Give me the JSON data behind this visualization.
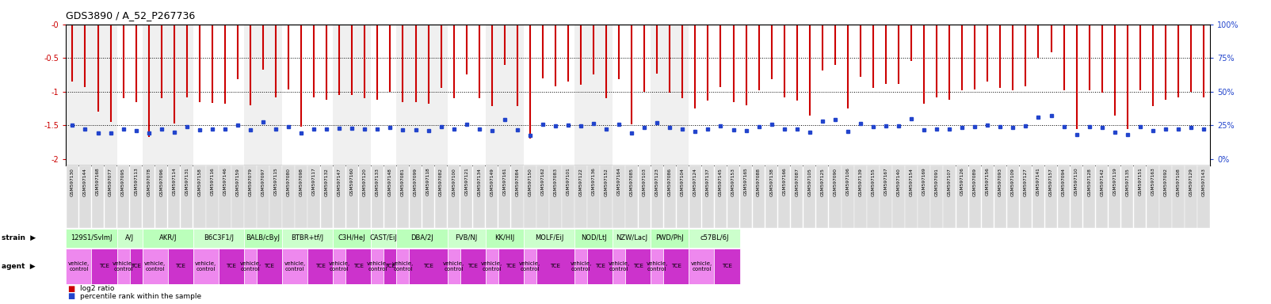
{
  "title": "GDS3890 / A_52_P267736",
  "gsm_ids": [
    "GSM597130",
    "GSM597144",
    "GSM597168",
    "GSM597077",
    "GSM597095",
    "GSM597113",
    "GSM597078",
    "GSM597096",
    "GSM597114",
    "GSM597131",
    "GSM597158",
    "GSM597116",
    "GSM597146",
    "GSM597159",
    "GSM597079",
    "GSM597097",
    "GSM597115",
    "GSM597080",
    "GSM597098",
    "GSM597117",
    "GSM597132",
    "GSM597147",
    "GSM597160",
    "GSM597120",
    "GSM597133",
    "GSM597148",
    "GSM597081",
    "GSM597099",
    "GSM597118",
    "GSM597082",
    "GSM597100",
    "GSM597121",
    "GSM597134",
    "GSM597149",
    "GSM597161",
    "GSM597084",
    "GSM597150",
    "GSM597162",
    "GSM597083",
    "GSM597101",
    "GSM597122",
    "GSM597136",
    "GSM597152",
    "GSM597164",
    "GSM597085",
    "GSM597103",
    "GSM597123",
    "GSM597086",
    "GSM597104",
    "GSM597124",
    "GSM597137",
    "GSM597145",
    "GSM597153",
    "GSM597165",
    "GSM597088",
    "GSM597138",
    "GSM597166",
    "GSM597087",
    "GSM597105",
    "GSM597125",
    "GSM597090",
    "GSM597106",
    "GSM597139",
    "GSM597155",
    "GSM597167",
    "GSM597140",
    "GSM597154",
    "GSM597169",
    "GSM597091",
    "GSM597107",
    "GSM597126",
    "GSM597089",
    "GSM597156",
    "GSM597093",
    "GSM597109",
    "GSM597127",
    "GSM597141",
    "GSM597157",
    "GSM597094",
    "GSM597110",
    "GSM597128",
    "GSM597142",
    "GSM597119",
    "GSM597135",
    "GSM597151",
    "GSM597163",
    "GSM597092",
    "GSM597108",
    "GSM597129",
    "GSM597143"
  ],
  "log2_vals": [
    -0.85,
    -0.93,
    -1.3,
    -1.45,
    -1.1,
    -1.15,
    -1.67,
    -1.1,
    -1.47,
    -1.08,
    -1.15,
    -1.17,
    -1.18,
    -0.82,
    -1.2,
    -0.67,
    -1.08,
    -0.97,
    -1.52,
    -1.08,
    -1.12,
    -1.05,
    -1.05,
    -1.1,
    -1.12,
    -1.0,
    -1.15,
    -1.15,
    -1.18,
    -0.95,
    -1.1,
    -0.75,
    -1.1,
    -1.22,
    -0.6,
    -1.22,
    -1.7,
    -0.8,
    -0.92,
    -0.85,
    -0.9,
    -0.75,
    -1.1,
    -0.82,
    -1.48,
    -1.0,
    -0.73,
    -1.02,
    -1.1,
    -1.25,
    -1.13,
    -0.93,
    -1.15,
    -1.2,
    -0.98,
    -0.82,
    -1.08,
    -1.13,
    -1.35,
    -0.68,
    -0.6,
    -1.25,
    -0.78,
    -0.95,
    -0.88,
    -0.88,
    -0.55,
    -1.18,
    -1.08,
    -1.12,
    -0.98,
    -0.97,
    -0.85,
    -0.95,
    -0.98,
    -0.92,
    -0.5,
    -0.42,
    -0.98,
    -1.55,
    -0.98,
    -1.02,
    -1.35,
    -1.55,
    -0.98,
    -1.22,
    -1.12,
    -1.08,
    -1.0,
    -1.08
  ],
  "pct_vals": [
    -1.5,
    -1.55,
    -1.62,
    -1.62,
    -1.55,
    -1.58,
    -1.62,
    -1.55,
    -1.6,
    -1.52,
    -1.57,
    -1.56,
    -1.56,
    -1.5,
    -1.57,
    -1.45,
    -1.56,
    -1.52,
    -1.62,
    -1.55,
    -1.56,
    -1.54,
    -1.54,
    -1.56,
    -1.56,
    -1.53,
    -1.57,
    -1.57,
    -1.58,
    -1.52,
    -1.55,
    -1.48,
    -1.55,
    -1.58,
    -1.42,
    -1.57,
    -1.65,
    -1.49,
    -1.51,
    -1.5,
    -1.51,
    -1.47,
    -1.55,
    -1.49,
    -1.62,
    -1.53,
    -1.46,
    -1.53,
    -1.55,
    -1.59,
    -1.56,
    -1.51,
    -1.57,
    -1.58,
    -1.52,
    -1.49,
    -1.55,
    -1.56,
    -1.6,
    -1.44,
    -1.42,
    -1.59,
    -1.47,
    -1.52,
    -1.51,
    -1.51,
    -1.4,
    -1.57,
    -1.55,
    -1.56,
    -1.53,
    -1.52,
    -1.5,
    -1.52,
    -1.53,
    -1.51,
    -1.38,
    -1.35,
    -1.52,
    -1.64,
    -1.52,
    -1.53,
    -1.6,
    -1.64,
    -1.52,
    -1.58,
    -1.56,
    -1.55,
    -1.53,
    -1.55
  ],
  "strains": [
    {
      "name": "129S1/SvImJ",
      "start": 0,
      "end": 4
    },
    {
      "name": "A/J",
      "start": 4,
      "end": 6
    },
    {
      "name": "AKR/J",
      "start": 6,
      "end": 10
    },
    {
      "name": "B6C3F1/J",
      "start": 10,
      "end": 14
    },
    {
      "name": "BALB/cByJ",
      "start": 14,
      "end": 17
    },
    {
      "name": "BTBR+tf/J",
      "start": 17,
      "end": 21
    },
    {
      "name": "C3H/HeJ",
      "start": 21,
      "end": 24
    },
    {
      "name": "CAST/EiJ",
      "start": 24,
      "end": 26
    },
    {
      "name": "DBA/2J",
      "start": 26,
      "end": 30
    },
    {
      "name": "FVB/NJ",
      "start": 30,
      "end": 33
    },
    {
      "name": "KK/HIJ",
      "start": 33,
      "end": 36
    },
    {
      "name": "MOLF/EiJ",
      "start": 36,
      "end": 40
    },
    {
      "name": "NOD/LtJ",
      "start": 40,
      "end": 43
    },
    {
      "name": "NZW/LacJ",
      "start": 43,
      "end": 46
    },
    {
      "name": "PWD/PhJ",
      "start": 46,
      "end": 49
    },
    {
      "name": "c57BL/6J",
      "start": 49,
      "end": 53
    }
  ],
  "agents": [
    {
      "name": "vehicle,\ncontrol",
      "start": 0,
      "end": 2
    },
    {
      "name": "TCE",
      "start": 2,
      "end": 4
    },
    {
      "name": "vehicle,\ncontrol",
      "start": 4,
      "end": 5
    },
    {
      "name": "TCE",
      "start": 5,
      "end": 6
    },
    {
      "name": "vehicle,\ncontrol",
      "start": 6,
      "end": 8
    },
    {
      "name": "TCE",
      "start": 8,
      "end": 10
    },
    {
      "name": "vehicle,\ncontrol",
      "start": 10,
      "end": 12
    },
    {
      "name": "TCE",
      "start": 12,
      "end": 14
    },
    {
      "name": "vehicle,\ncontrol",
      "start": 14,
      "end": 15
    },
    {
      "name": "TCE",
      "start": 15,
      "end": 17
    },
    {
      "name": "vehicle,\ncontrol",
      "start": 17,
      "end": 19
    },
    {
      "name": "TCE",
      "start": 19,
      "end": 21
    },
    {
      "name": "vehicle,\ncontrol",
      "start": 21,
      "end": 22
    },
    {
      "name": "TCE",
      "start": 22,
      "end": 24
    },
    {
      "name": "vehicle,\ncontrol",
      "start": 24,
      "end": 25
    },
    {
      "name": "TCE",
      "start": 25,
      "end": 26
    },
    {
      "name": "vehicle,\ncontrol",
      "start": 26,
      "end": 27
    },
    {
      "name": "TCE",
      "start": 27,
      "end": 30
    },
    {
      "name": "vehicle,\ncontrol",
      "start": 30,
      "end": 31
    },
    {
      "name": "TCE",
      "start": 31,
      "end": 33
    },
    {
      "name": "vehicle,\ncontrol",
      "start": 33,
      "end": 34
    },
    {
      "name": "TCE",
      "start": 34,
      "end": 36
    },
    {
      "name": "vehicle,\ncontrol",
      "start": 36,
      "end": 37
    },
    {
      "name": "TCE",
      "start": 37,
      "end": 40
    },
    {
      "name": "vehicle,\ncontrol",
      "start": 40,
      "end": 41
    },
    {
      "name": "TCE",
      "start": 41,
      "end": 43
    },
    {
      "name": "vehicle,\ncontrol",
      "start": 43,
      "end": 44
    },
    {
      "name": "TCE",
      "start": 44,
      "end": 46
    },
    {
      "name": "vehicle,\ncontrol",
      "start": 46,
      "end": 47
    },
    {
      "name": "TCE",
      "start": 47,
      "end": 49
    },
    {
      "name": "vehicle,\ncontrol",
      "start": 49,
      "end": 51
    },
    {
      "name": "TCE",
      "start": 51,
      "end": 53
    }
  ],
  "bar_color": "#cc0000",
  "dot_color": "#2244cc",
  "vehicle_color": "#ee88ee",
  "tce_color": "#cc33cc",
  "strain_color": "#bbffbb",
  "xtick_bg_color": "#dddddd",
  "hline_color": "#333333",
  "left_axis_color": "#cc0000",
  "right_axis_color": "#2244cc"
}
